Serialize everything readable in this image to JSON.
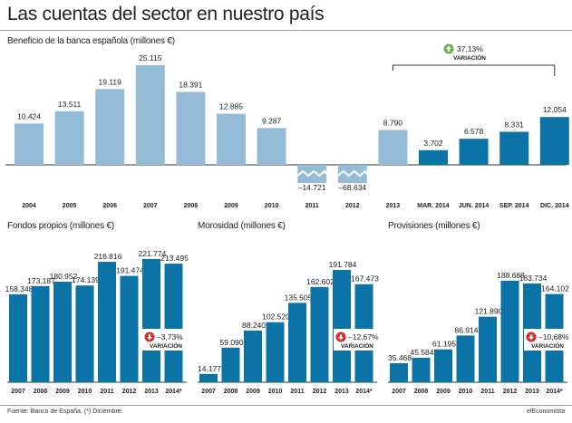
{
  "title": "Las cuentas del sector en nuestro país",
  "footer": {
    "source": "Fuente: Banco de España. (*) Diciembre.",
    "brand": "elEconomista"
  },
  "colors": {
    "light": "#94bcd6",
    "dark": "#0b73a6",
    "up": "#6fb04a",
    "down": "#d62b22",
    "axis": "#333333"
  },
  "chart_data": [
    {
      "type": "bar",
      "title": "Beneficio de la banca española (millones €)",
      "categories": [
        "2004",
        "2005",
        "2006",
        "2007",
        "2008",
        "2009",
        "2010",
        "2011",
        "2012",
        "2013",
        "MAR. 2014",
        "JUN. 2014",
        "SEP. 2014",
        "DIC. 2014"
      ],
      "values": [
        10424,
        13511,
        19119,
        25115,
        18391,
        12885,
        9287,
        -14721,
        -68634,
        8790,
        3702,
        6578,
        8331,
        12054
      ],
      "labels": [
        "10.424",
        "13.511",
        "19.119",
        "25.115",
        "18.391",
        "12.885",
        "9.287",
        "–14.721",
        "–68.634",
        "8.790",
        "3.702",
        "6.578",
        "8.331",
        "12.054"
      ],
      "series_colors": [
        "light",
        "light",
        "light",
        "light",
        "light",
        "light",
        "light",
        "light",
        "light",
        "light",
        "dark",
        "dark",
        "dark",
        "dark"
      ],
      "broken_axis": [
        false,
        false,
        false,
        false,
        false,
        false,
        false,
        true,
        true,
        false,
        false,
        false,
        false,
        false
      ],
      "variation": {
        "value": "37,13%",
        "label": "VARIACIÓN",
        "direction": "up"
      }
    },
    {
      "type": "bar",
      "title": "Fondos propios (millones €)",
      "categories": [
        "2007",
        "2008",
        "2009",
        "2010",
        "2011",
        "2012",
        "2013",
        "2014*"
      ],
      "values": [
        158348,
        173187,
        180952,
        174139,
        216816,
        191474,
        221774,
        213495
      ],
      "labels": [
        "158.348",
        "173.187",
        "180.952",
        "174.139",
        "216.816",
        "191.474",
        "221.774",
        "213.495"
      ],
      "variation": {
        "value": "–3,73%",
        "label": "VARIACIÓN",
        "direction": "down"
      }
    },
    {
      "type": "bar",
      "title": "Morosidad (millones €)",
      "categories": [
        "2007",
        "2008",
        "2009",
        "2010",
        "2011",
        "2012",
        "2013",
        "2014*"
      ],
      "values": [
        14177,
        59090,
        88240,
        102520,
        135505,
        162602,
        191784,
        167473
      ],
      "labels": [
        "14.177",
        "59.090",
        "88.240",
        "102.520",
        "135.505",
        "162.602",
        "191.784",
        "167.473"
      ],
      "variation": {
        "value": "–12,67%",
        "label": "VARIACIÓN",
        "direction": "down"
      }
    },
    {
      "type": "bar",
      "title": "Provisiones (millones €)",
      "categories": [
        "2007",
        "2008",
        "2009",
        "2010",
        "2011",
        "2012",
        "2013",
        "2014*"
      ],
      "values": [
        35468,
        45584,
        61195,
        86914,
        121890,
        188688,
        183734,
        164102
      ],
      "labels": [
        "35.468",
        "45.584",
        "61.195",
        "86.914",
        "121.890",
        "188.688",
        "183.734",
        "164.102"
      ],
      "variation": {
        "value": "–10,68%",
        "label": "VARIACIÓN",
        "direction": "down"
      }
    }
  ]
}
